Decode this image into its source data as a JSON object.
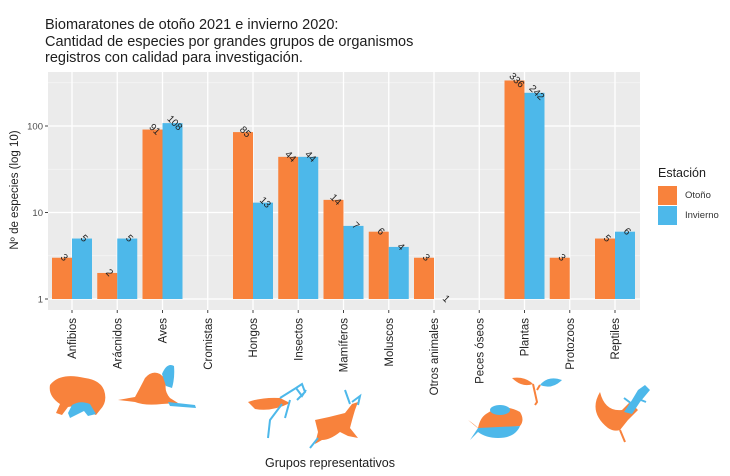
{
  "chart_data": {
    "type": "bar",
    "title": "Biomaratones de otoño 2021 e invierno 2020:",
    "subtitle_lines": [
      "Cantidad de especies por grandes grupos de organismos",
      "registros con calidad para investigación."
    ],
    "xlabel": "Grupos representativos",
    "ylabel": "Nº de especies (log 10)",
    "y_scale": "log10",
    "ylim": [
      1,
      400
    ],
    "yticks": [
      {
        "value": 1,
        "label": "1"
      },
      {
        "value": 10,
        "label": "10"
      },
      {
        "value": 100,
        "label": "100"
      }
    ],
    "grid": true,
    "legend": {
      "title": "Estación",
      "placement": "right"
    },
    "categories": [
      "Anfibios",
      "Arácnidos",
      "Aves",
      "Cromistas",
      "Hongos",
      "Insectos",
      "Mamíferos",
      "Moluscos",
      "Otros animales",
      "Peces óseos",
      "Plantas",
      "Protozoos",
      "Reptiles"
    ],
    "series": [
      {
        "name": "Otoño",
        "color": "#F8823C",
        "values": [
          3,
          2,
          91,
          null,
          85,
          44,
          14,
          6,
          3,
          null,
          336,
          3,
          5
        ]
      },
      {
        "name": "Invierno",
        "color": "#4DB8EA",
        "values": [
          5,
          5,
          108,
          null,
          13,
          44,
          7,
          4,
          1,
          null,
          242,
          null,
          6
        ]
      }
    ]
  },
  "silhouettes": [
    {
      "name": "frog",
      "category": "Anfibios"
    },
    {
      "name": "heron",
      "category": "Aves"
    },
    {
      "name": "mantis",
      "category": "Insectos"
    },
    {
      "name": "deer",
      "category": "Mamíferos"
    },
    {
      "name": "fish",
      "category": "Peces óseos"
    },
    {
      "name": "sprout",
      "category": "Plantas"
    },
    {
      "name": "lizard",
      "category": "Reptiles"
    }
  ]
}
